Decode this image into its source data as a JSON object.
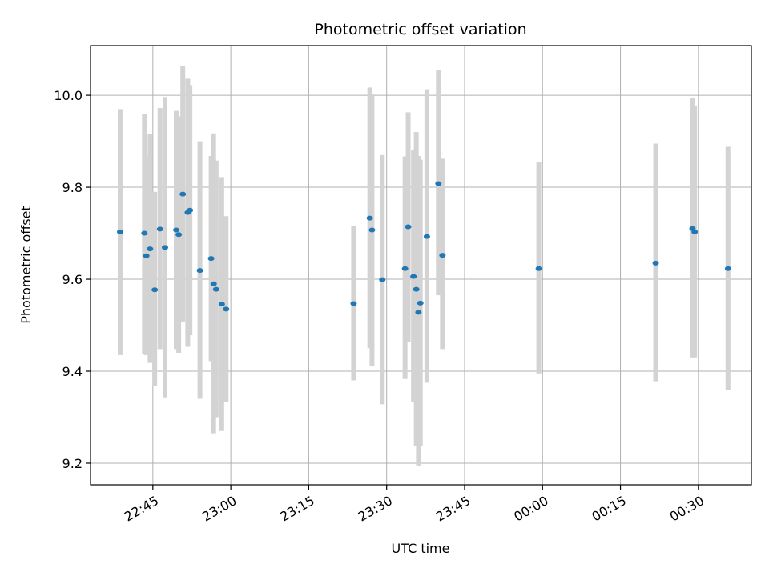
{
  "chart_data": {
    "type": "scatter",
    "title": "Photometric offset variation",
    "xlabel": "UTC time",
    "ylabel": "Photometric offset",
    "x_unit": "UTC clock time (hours past 22:00; 24.5 = 00:30 next day)",
    "xlim": [
      22.55,
      24.67
    ],
    "ylim": [
      9.153,
      10.108
    ],
    "grid": true,
    "x_ticks": [
      {
        "value": 22.75,
        "label": "22:45"
      },
      {
        "value": 23.0,
        "label": "23:00"
      },
      {
        "value": 23.25,
        "label": "23:15"
      },
      {
        "value": 23.5,
        "label": "23:30"
      },
      {
        "value": 23.75,
        "label": "23:45"
      },
      {
        "value": 24.0,
        "label": "00:00"
      },
      {
        "value": 24.25,
        "label": "00:15"
      },
      {
        "value": 24.5,
        "label": "00:30"
      }
    ],
    "y_ticks": [
      {
        "value": 9.2,
        "label": "9.2"
      },
      {
        "value": 9.4,
        "label": "9.4"
      },
      {
        "value": 9.6,
        "label": "9.6"
      },
      {
        "value": 9.8,
        "label": "9.8"
      },
      {
        "value": 10.0,
        "label": "10.0"
      }
    ],
    "point_color": "#1f77b4",
    "errorbar_color": "#d3d3d3",
    "points": [
      {
        "x": 22.645,
        "y": 9.703,
        "ylo": 9.435,
        "yhi": 9.97
      },
      {
        "x": 22.723,
        "y": 9.7,
        "ylo": 9.438,
        "yhi": 9.96
      },
      {
        "x": 22.729,
        "y": 9.651,
        "ylo": 9.435,
        "yhi": 9.868
      },
      {
        "x": 22.741,
        "y": 9.666,
        "ylo": 9.418,
        "yhi": 9.916
      },
      {
        "x": 22.756,
        "y": 9.577,
        "ylo": 9.368,
        "yhi": 9.79
      },
      {
        "x": 22.773,
        "y": 9.709,
        "ylo": 9.448,
        "yhi": 9.972
      },
      {
        "x": 22.789,
        "y": 9.669,
        "ylo": 9.343,
        "yhi": 9.996
      },
      {
        "x": 22.825,
        "y": 9.707,
        "ylo": 9.448,
        "yhi": 9.966
      },
      {
        "x": 22.833,
        "y": 9.697,
        "ylo": 9.44,
        "yhi": 9.954
      },
      {
        "x": 22.846,
        "y": 9.785,
        "ylo": 9.508,
        "yhi": 10.063
      },
      {
        "x": 22.862,
        "y": 9.745,
        "ylo": 9.453,
        "yhi": 10.036
      },
      {
        "x": 22.869,
        "y": 9.75,
        "ylo": 9.478,
        "yhi": 10.022
      },
      {
        "x": 22.901,
        "y": 9.619,
        "ylo": 9.34,
        "yhi": 9.9
      },
      {
        "x": 22.937,
        "y": 9.645,
        "ylo": 9.422,
        "yhi": 9.868
      },
      {
        "x": 22.945,
        "y": 9.59,
        "ylo": 9.265,
        "yhi": 9.917
      },
      {
        "x": 22.953,
        "y": 9.578,
        "ylo": 9.3,
        "yhi": 9.858
      },
      {
        "x": 22.971,
        "y": 9.546,
        "ylo": 9.27,
        "yhi": 9.822
      },
      {
        "x": 22.985,
        "y": 9.535,
        "ylo": 9.333,
        "yhi": 9.737
      },
      {
        "x": 23.394,
        "y": 9.547,
        "ylo": 9.38,
        "yhi": 9.716
      },
      {
        "x": 23.446,
        "y": 9.733,
        "ylo": 9.45,
        "yhi": 10.017
      },
      {
        "x": 23.453,
        "y": 9.707,
        "ylo": 9.412,
        "yhi": 10.002
      },
      {
        "x": 23.486,
        "y": 9.599,
        "ylo": 9.328,
        "yhi": 9.87
      },
      {
        "x": 23.559,
        "y": 9.623,
        "ylo": 9.383,
        "yhi": 9.867
      },
      {
        "x": 23.569,
        "y": 9.714,
        "ylo": 9.463,
        "yhi": 9.963
      },
      {
        "x": 23.586,
        "y": 9.606,
        "ylo": 9.333,
        "yhi": 9.88
      },
      {
        "x": 23.595,
        "y": 9.578,
        "ylo": 9.238,
        "yhi": 9.92
      },
      {
        "x": 23.602,
        "y": 9.528,
        "ylo": 9.195,
        "yhi": 9.868
      },
      {
        "x": 23.608,
        "y": 9.548,
        "ylo": 9.238,
        "yhi": 9.86
      },
      {
        "x": 23.629,
        "y": 9.693,
        "ylo": 9.375,
        "yhi": 10.013
      },
      {
        "x": 23.666,
        "y": 9.808,
        "ylo": 9.565,
        "yhi": 10.054
      },
      {
        "x": 23.679,
        "y": 9.652,
        "ylo": 9.448,
        "yhi": 9.862
      },
      {
        "x": 23.988,
        "y": 9.623,
        "ylo": 9.395,
        "yhi": 9.855
      },
      {
        "x": 24.363,
        "y": 9.635,
        "ylo": 9.378,
        "yhi": 9.895
      },
      {
        "x": 24.481,
        "y": 9.71,
        "ylo": 9.43,
        "yhi": 9.994
      },
      {
        "x": 24.488,
        "y": 9.703,
        "ylo": 9.43,
        "yhi": 9.977
      },
      {
        "x": 24.595,
        "y": 9.623,
        "ylo": 9.36,
        "yhi": 9.888
      }
    ]
  }
}
